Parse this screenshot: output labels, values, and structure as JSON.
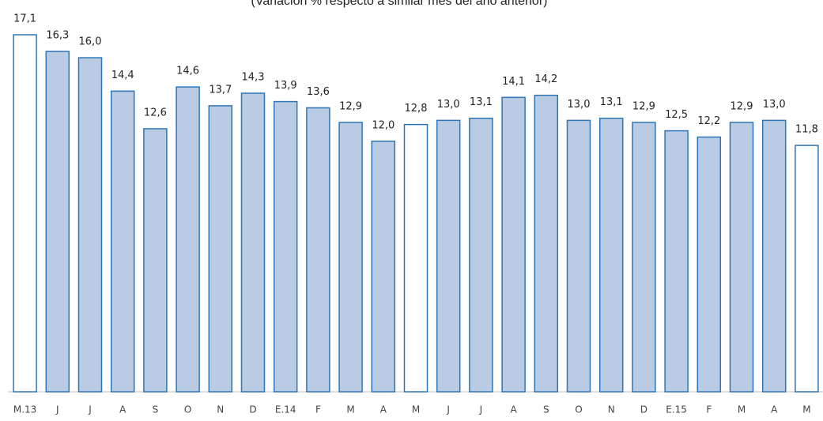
{
  "chart_data": {
    "type": "bar",
    "subtitle": "(Variación % respecto a similar mes del año anterior)",
    "categories": [
      "M.13",
      "J",
      "J",
      "A",
      "S",
      "O",
      "N",
      "D",
      "E.14",
      "F",
      "M",
      "A",
      "M",
      "J",
      "J",
      "A",
      "S",
      "O",
      "N",
      "D",
      "E.15",
      "F",
      "M",
      "A",
      "M"
    ],
    "values": [
      17.1,
      16.3,
      16.0,
      14.4,
      12.6,
      14.6,
      13.7,
      14.3,
      13.9,
      13.6,
      12.9,
      12.0,
      12.8,
      13.0,
      13.1,
      14.1,
      14.2,
      13.0,
      13.1,
      12.9,
      12.5,
      12.2,
      12.9,
      13.0,
      11.8
    ],
    "value_labels": [
      "17,1",
      "16,3",
      "16,0",
      "14,4",
      "12,6",
      "14,6",
      "13,7",
      "14,3",
      "13,9",
      "13,6",
      "12,9",
      "12,0",
      "12,8",
      "13,0",
      "13,1",
      "14,1",
      "14,2",
      "13,0",
      "13,1",
      "12,9",
      "12,5",
      "12,2",
      "12,9",
      "13,0",
      "11,8"
    ],
    "colors": [
      "#ffffff",
      "#b9cce4",
      "#b9cce4",
      "#b9cce4",
      "#b9cce4",
      "#b9cce4",
      "#b9cce4",
      "#b9cce4",
      "#b9cce4",
      "#b9cce4",
      "#b9cce4",
      "#b9cce4",
      "#ffffff",
      "#b9cce4",
      "#b9cce4",
      "#b9cce4",
      "#b9cce4",
      "#b9cce4",
      "#b9cce4",
      "#b9cce4",
      "#b9cce4",
      "#b9cce4",
      "#b9cce4",
      "#b9cce4",
      "#ffffff"
    ],
    "edge_color": "#2e75b6"
  }
}
